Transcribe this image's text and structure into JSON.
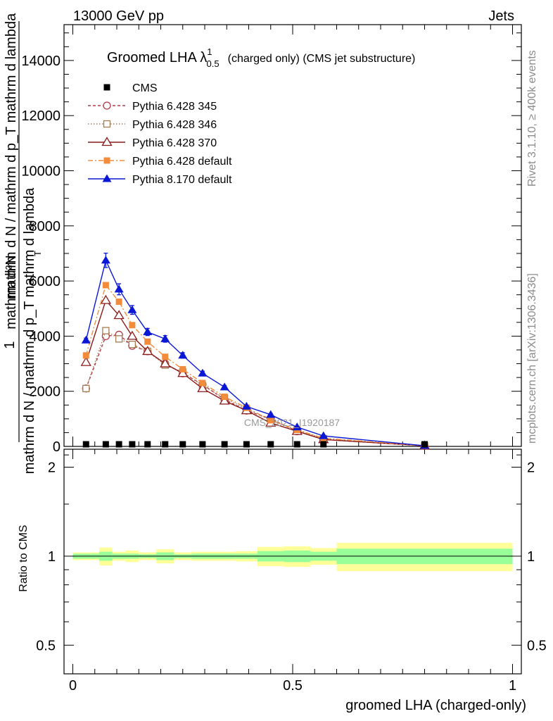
{
  "header": {
    "energy_label": "13000 GeV pp",
    "category_label": "Jets",
    "side_label_top": "Rivet 3.1.10, ≥ 400k events",
    "side_label_bottom": "mcplots.cern.ch [arXiv:1306.3436]",
    "watermark": "CMS_2021_I1920187"
  },
  "chart_data": {
    "type": "line",
    "title_main": "Groomed LHA λ",
    "title_sup": "1",
    "title_sub": "0.5",
    "title_suffix": "(charged only) (CMS jet substructure)",
    "ylabel_lines": [
      "mathrm d N / mathrm d p_T mathrm d lambda",
      "mathrm d²N",
      "mathrm d N / mathrm d p_T mathrm d lambda",
      "1"
    ],
    "ylabel_sub_t": "T",
    "ratio_ylabel": "Ratio to CMS",
    "xlabel": "groomed LHA (charged-only)",
    "xlim": [
      -0.02,
      1.02
    ],
    "ylim": [
      0,
      15300
    ],
    "ratio_ylim": [
      0.4,
      2.3
    ],
    "x_ticks": [
      0,
      0.5,
      1
    ],
    "x_tick_labels": [
      "0",
      "0.5",
      "1"
    ],
    "y_ticks": [
      0,
      2000,
      4000,
      6000,
      8000,
      10000,
      12000,
      14000
    ],
    "y_tick_labels": [
      "0",
      "2000",
      "4000",
      "6000",
      "8000",
      "10000",
      "12000",
      "14000"
    ],
    "ratio_ticks": [
      0.5,
      1,
      2
    ],
    "ratio_tick_labels": [
      "0.5",
      "1",
      "2"
    ],
    "x": [
      0.03,
      0.075,
      0.105,
      0.135,
      0.17,
      0.21,
      0.25,
      0.295,
      0.345,
      0.395,
      0.45,
      0.51,
      0.57,
      0.8
    ],
    "ratio_bins": [
      {
        "lo": 0.0,
        "hi": 0.06,
        "inner": 0.02,
        "outer": 0.03
      },
      {
        "lo": 0.06,
        "hi": 0.09,
        "inner": 0.035,
        "outer": 0.07
      },
      {
        "lo": 0.09,
        "hi": 0.12,
        "inner": 0.02,
        "outer": 0.035
      },
      {
        "lo": 0.12,
        "hi": 0.15,
        "inner": 0.02,
        "outer": 0.045
      },
      {
        "lo": 0.15,
        "hi": 0.19,
        "inner": 0.015,
        "outer": 0.03
      },
      {
        "lo": 0.19,
        "hi": 0.23,
        "inner": 0.03,
        "outer": 0.055
      },
      {
        "lo": 0.23,
        "hi": 0.27,
        "inner": 0.015,
        "outer": 0.03
      },
      {
        "lo": 0.27,
        "hi": 0.32,
        "inner": 0.02,
        "outer": 0.035
      },
      {
        "lo": 0.32,
        "hi": 0.37,
        "inner": 0.02,
        "outer": 0.035
      },
      {
        "lo": 0.37,
        "hi": 0.42,
        "inner": 0.02,
        "outer": 0.04
      },
      {
        "lo": 0.42,
        "hi": 0.48,
        "inner": 0.04,
        "outer": 0.075
      },
      {
        "lo": 0.48,
        "hi": 0.54,
        "inner": 0.045,
        "outer": 0.08
      },
      {
        "lo": 0.54,
        "hi": 0.6,
        "inner": 0.035,
        "outer": 0.065
      },
      {
        "lo": 0.6,
        "hi": 1.0,
        "inner": 0.06,
        "outer": 0.11
      }
    ],
    "series": [
      {
        "name": "CMS",
        "color": "#000000",
        "marker": "square-filled",
        "dash": "none",
        "values": [
          30,
          30,
          30,
          30,
          30,
          30,
          30,
          30,
          30,
          30,
          30,
          30,
          30,
          30
        ],
        "errors": []
      },
      {
        "name": "Pythia 6.428 345",
        "color": "#b03a48",
        "marker": "circle-open",
        "dash": "4,3",
        "values": [
          2100,
          4000,
          4050,
          3650,
          3450,
          3000,
          2650,
          2250,
          1700,
          1300,
          1000,
          550,
          250,
          20
        ],
        "errors": []
      },
      {
        "name": "Pythia 6.428 346",
        "color": "#a67c52",
        "marker": "square-open",
        "dash": "1.5,2.5",
        "values": [
          2100,
          4200,
          3900,
          3700,
          3450,
          2950,
          2700,
          2200,
          1750,
          1350,
          950,
          600,
          280,
          20
        ],
        "errors": []
      },
      {
        "name": "Pythia 6.428 370",
        "color": "#8b1a1a",
        "marker": "triangle-open",
        "dash": "none",
        "values": [
          3050,
          5300,
          4750,
          4000,
          3450,
          3000,
          2650,
          2100,
          1650,
          1300,
          850,
          550,
          250,
          20
        ],
        "errors": []
      },
      {
        "name": "Pythia 6.428 default",
        "color": "#f28c3a",
        "marker": "square-filled",
        "dash": "7,3,2,3",
        "values": [
          3300,
          5850,
          5250,
          4400,
          3800,
          3250,
          2800,
          2300,
          1800,
          1400,
          950,
          600,
          300,
          20
        ],
        "errors": []
      },
      {
        "name": "Pythia 8.170 default",
        "color": "#0a18d6",
        "marker": "triangle-filled",
        "dash": "none",
        "values": [
          3850,
          6750,
          5700,
          4950,
          4150,
          3900,
          3300,
          2650,
          2150,
          1450,
          1150,
          700,
          380,
          25
        ],
        "errors": [
          80,
          260,
          200,
          160,
          130,
          120,
          100,
          80,
          60,
          50,
          40,
          30,
          20,
          10
        ]
      }
    ]
  }
}
